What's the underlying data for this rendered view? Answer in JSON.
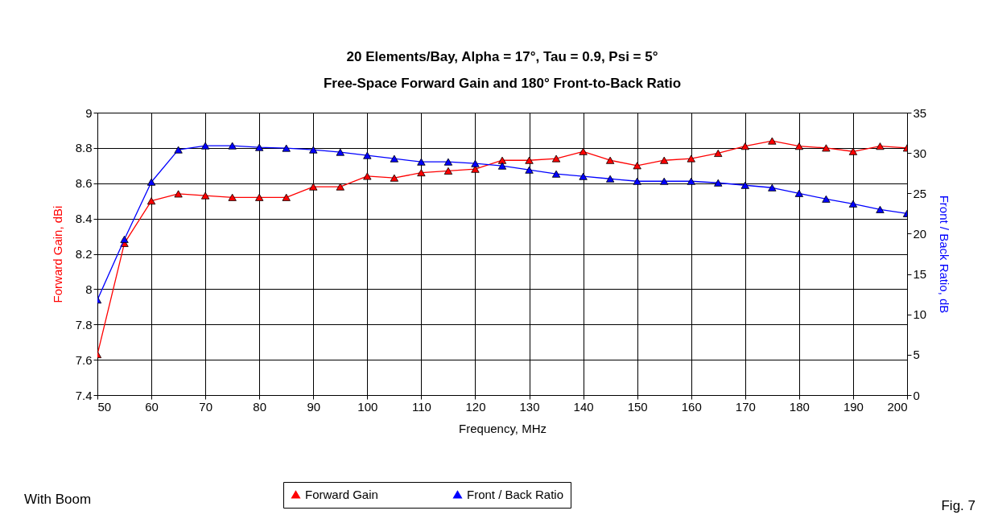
{
  "chart_data": {
    "type": "line",
    "title": "20 Elements/Bay, Alpha = 17°, Tau = 0.9, Psi =  5°",
    "subtitle": "Free-Space Forward Gain and 180° Front-to-Back Ratio",
    "xlabel": "Frequency, MHz",
    "ylabel": "Forward Gain, dBi",
    "y2label": "Front / Back Ratio, dB",
    "x": [
      50,
      55,
      60,
      65,
      70,
      75,
      80,
      85,
      90,
      95,
      100,
      105,
      110,
      115,
      120,
      125,
      130,
      135,
      140,
      145,
      150,
      155,
      160,
      165,
      170,
      175,
      180,
      185,
      190,
      195,
      200
    ],
    "series": [
      {
        "name": "Forward Gain",
        "color": "#ff0000",
        "values": [
          7.63,
          8.26,
          8.5,
          8.54,
          8.53,
          8.52,
          8.52,
          8.52,
          8.58,
          8.58,
          8.64,
          8.63,
          8.66,
          8.67,
          8.68,
          8.73,
          8.73,
          8.74,
          8.78,
          8.73,
          8.7,
          8.73,
          8.74,
          8.77,
          8.81,
          8.84,
          8.81,
          8.8,
          8.78,
          8.81,
          8.8
        ]
      },
      {
        "name": "Front / Back Ratio",
        "color": "#0000ff",
        "axis": "y2",
        "values": [
          11.8,
          19.3,
          26.4,
          30.4,
          30.9,
          30.9,
          30.7,
          30.6,
          30.4,
          30.1,
          29.7,
          29.3,
          28.9,
          28.9,
          28.7,
          28.4,
          27.9,
          27.4,
          27.1,
          26.8,
          26.5,
          26.5,
          26.5,
          26.3,
          26.0,
          25.7,
          25.0,
          24.3,
          23.7,
          23.0,
          22.5
        ]
      }
    ],
    "xlim": [
      50,
      200
    ],
    "xticks": [
      50,
      60,
      70,
      80,
      90,
      100,
      110,
      120,
      130,
      140,
      150,
      160,
      170,
      180,
      190,
      200
    ],
    "ylim": [
      7.4,
      9
    ],
    "yticks": [
      7.4,
      7.6,
      7.8,
      8,
      8.2,
      8.4,
      8.6,
      8.8,
      9
    ],
    "y2lim": [
      0,
      35
    ],
    "y2ticks": [
      0,
      5,
      10,
      15,
      20,
      25,
      30,
      35
    ],
    "grid": true,
    "legend": "bottom",
    "marker": "triangle",
    "line_style": "solid",
    "annotations": [
      "With Boom",
      "Fig. 7"
    ]
  }
}
